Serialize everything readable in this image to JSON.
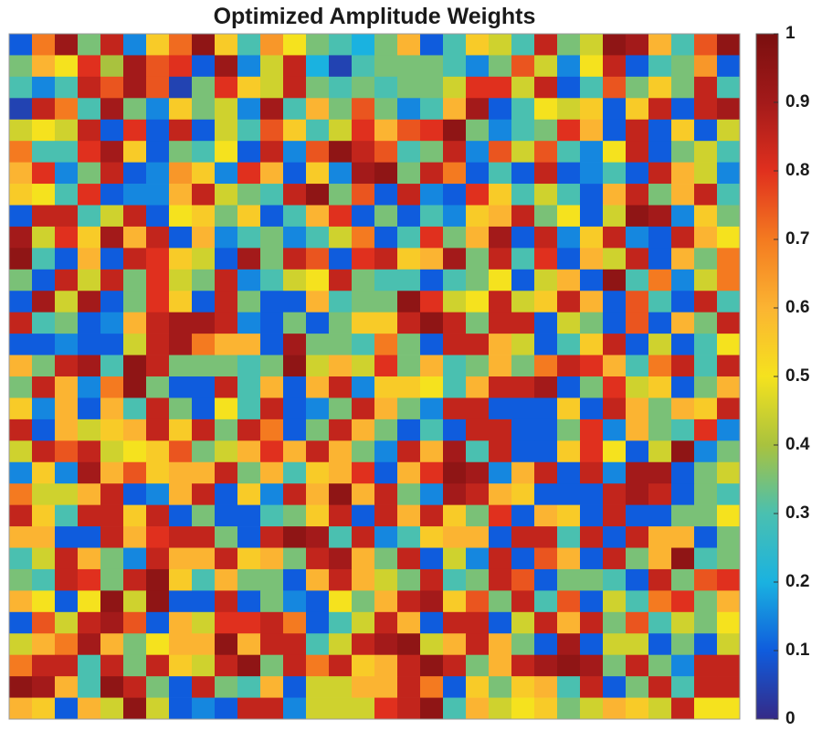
{
  "chart_data": {
    "type": "heatmap",
    "title": "Optimized Amplitude Weights",
    "xlabel": "",
    "ylabel": "",
    "rows": 32,
    "cols": 32,
    "colormap": "parula-like (dark blue to dark red)",
    "colorbar": {
      "range": [
        0,
        1
      ],
      "ticks": [
        0,
        0.1,
        0.2,
        0.3,
        0.4,
        0.5,
        0.6,
        0.7,
        0.8,
        0.9,
        1
      ],
      "tick_labels": [
        "0",
        "0.1",
        "0.2",
        "0.3",
        "0.4",
        "0.5",
        "0.6",
        "0.7",
        "0.8",
        "0.9",
        "1"
      ]
    },
    "colors": [
      "#352a87",
      "#0f5cdd",
      "#1ab2e0",
      "#4ac0b0",
      "#a9c23e",
      "#f5e21e",
      "#fbb432",
      "#f47a20",
      "#e0301e",
      "#a31a1a",
      "#7a0f0f"
    ],
    "values": [
      [
        0.1,
        0.7,
        0.92,
        0.35,
        0.85,
        0.15,
        0.55,
        0.72,
        0.95,
        0.55,
        0.3,
        0.65,
        0.5,
        0.35,
        0.3,
        0.2,
        0.35,
        0.6,
        0.1,
        0.3,
        0.55,
        0.45,
        0.3,
        0.85,
        0.35,
        0.45,
        0.95,
        0.9,
        0.6,
        0.3,
        0.75,
        0.95
      ],
      [
        0.35,
        0.6,
        0.5,
        0.8,
        0.4,
        0.9,
        0.75,
        0.8,
        0.1,
        0.92,
        0.15,
        0.45,
        0.85,
        0.2,
        0.05,
        0.3,
        0.35,
        0.35,
        0.35,
        0.3,
        0.15,
        0.35,
        0.75,
        0.45,
        0.15,
        0.5,
        0.85,
        0.1,
        0.3,
        0.35,
        0.65,
        0.1
      ],
      [
        0.3,
        0.15,
        0.3,
        0.85,
        0.75,
        0.9,
        0.75,
        0.05,
        0.35,
        0.8,
        0.55,
        0.45,
        0.85,
        0.35,
        0.3,
        0.35,
        0.3,
        0.35,
        0.35,
        0.45,
        0.8,
        0.8,
        0.45,
        0.85,
        0.1,
        0.3,
        0.75,
        0.35,
        0.55,
        0.35,
        0.85,
        0.3
      ],
      [
        0.05,
        0.85,
        0.7,
        0.3,
        0.9,
        0.35,
        0.15,
        0.55,
        0.35,
        0.45,
        0.15,
        0.9,
        0.3,
        0.6,
        0.35,
        0.75,
        0.35,
        0.15,
        0.3,
        0.6,
        0.9,
        0.1,
        0.3,
        0.5,
        0.45,
        0.55,
        0.1,
        0.55,
        0.85,
        0.1,
        0.85,
        0.9
      ],
      [
        0.45,
        0.5,
        0.45,
        0.85,
        0.1,
        0.8,
        0.1,
        0.85,
        0.1,
        0.45,
        0.3,
        0.75,
        0.55,
        0.3,
        0.45,
        0.8,
        0.6,
        0.75,
        0.8,
        0.95,
        0.35,
        0.15,
        0.3,
        0.35,
        0.8,
        0.6,
        0.1,
        0.85,
        0.1,
        0.55,
        0.1,
        0.45
      ],
      [
        0.7,
        0.3,
        0.3,
        0.8,
        0.9,
        0.55,
        0.1,
        0.35,
        0.3,
        0.5,
        0.1,
        0.85,
        0.15,
        0.75,
        0.95,
        0.85,
        0.75,
        0.3,
        0.35,
        0.85,
        0.15,
        0.75,
        0.45,
        0.75,
        0.3,
        0.15,
        0.5,
        0.85,
        0.1,
        0.35,
        0.45,
        0.3
      ],
      [
        0.6,
        0.8,
        0.15,
        0.35,
        0.85,
        0.1,
        0.15,
        0.65,
        0.55,
        0.15,
        0.8,
        0.6,
        0.1,
        0.55,
        0.15,
        0.9,
        0.95,
        0.35,
        0.85,
        0.7,
        0.1,
        0.3,
        0.1,
        0.85,
        0.1,
        0.15,
        0.3,
        0.1,
        0.85,
        0.6,
        0.45,
        0.15
      ],
      [
        0.55,
        0.5,
        0.3,
        0.8,
        0.1,
        0.15,
        0.15,
        0.6,
        0.85,
        0.45,
        0.35,
        0.3,
        0.85,
        0.95,
        0.35,
        0.75,
        0.1,
        0.85,
        0.15,
        0.1,
        0.8,
        0.55,
        0.3,
        0.45,
        0.3,
        0.1,
        0.6,
        0.85,
        0.35,
        0.6,
        0.85,
        0.3
      ],
      [
        0.1,
        0.85,
        0.85,
        0.3,
        0.45,
        0.85,
        0.1,
        0.5,
        0.55,
        0.35,
        0.55,
        0.1,
        0.3,
        0.6,
        0.8,
        0.1,
        0.35,
        0.1,
        0.3,
        0.15,
        0.55,
        0.6,
        0.85,
        0.35,
        0.5,
        0.1,
        0.45,
        0.95,
        0.9,
        0.15,
        0.55,
        0.35
      ],
      [
        0.9,
        0.45,
        0.8,
        0.55,
        0.9,
        0.6,
        0.85,
        0.1,
        0.6,
        0.15,
        0.3,
        0.35,
        0.15,
        0.3,
        0.45,
        0.7,
        0.1,
        0.3,
        0.8,
        0.35,
        0.6,
        0.9,
        0.1,
        0.85,
        0.15,
        0.55,
        0.85,
        0.15,
        0.1,
        0.85,
        0.6,
        0.5
      ],
      [
        0.95,
        0.3,
        0.1,
        0.6,
        0.1,
        0.85,
        0.8,
        0.55,
        0.45,
        0.1,
        0.9,
        0.35,
        0.85,
        0.75,
        0.1,
        0.8,
        0.85,
        0.55,
        0.6,
        0.9,
        0.35,
        0.85,
        0.3,
        0.8,
        0.1,
        0.6,
        0.45,
        0.85,
        0.1,
        0.6,
        0.35,
        0.7
      ],
      [
        0.35,
        0.1,
        0.85,
        0.45,
        0.85,
        0.35,
        0.8,
        0.45,
        0.35,
        0.85,
        0.15,
        0.3,
        0.45,
        0.5,
        0.85,
        0.35,
        0.3,
        0.3,
        0.1,
        0.3,
        0.35,
        0.5,
        0.1,
        0.45,
        0.6,
        0.1,
        0.95,
        0.3,
        0.7,
        0.15,
        0.45,
        0.7
      ],
      [
        0.1,
        0.9,
        0.45,
        0.9,
        0.1,
        0.35,
        0.8,
        0.55,
        0.1,
        0.85,
        0.35,
        0.1,
        0.1,
        0.6,
        0.3,
        0.35,
        0.35,
        0.95,
        0.8,
        0.45,
        0.5,
        0.85,
        0.45,
        0.55,
        0.85,
        0.6,
        0.1,
        0.75,
        0.3,
        0.1,
        0.85,
        0.3
      ],
      [
        0.85,
        0.3,
        0.35,
        0.1,
        0.15,
        0.6,
        0.85,
        0.9,
        0.9,
        0.85,
        0.15,
        0.1,
        0.35,
        0.1,
        0.35,
        0.55,
        0.55,
        0.85,
        0.95,
        0.85,
        0.35,
        0.85,
        0.85,
        0.1,
        0.45,
        0.35,
        0.1,
        0.75,
        0.1,
        0.6,
        0.35,
        0.85
      ],
      [
        0.1,
        0.1,
        0.15,
        0.1,
        0.1,
        0.45,
        0.85,
        0.9,
        0.7,
        0.6,
        0.6,
        0.1,
        0.9,
        0.35,
        0.35,
        0.3,
        0.7,
        0.35,
        0.1,
        0.85,
        0.85,
        0.6,
        0.45,
        0.1,
        0.3,
        0.55,
        0.85,
        0.1,
        0.45,
        0.1,
        0.3,
        0.5
      ],
      [
        0.6,
        0.35,
        0.85,
        0.9,
        0.3,
        0.95,
        0.85,
        0.35,
        0.35,
        0.35,
        0.3,
        0.35,
        0.95,
        0.45,
        0.6,
        0.45,
        0.8,
        0.35,
        0.6,
        0.3,
        0.35,
        0.6,
        0.35,
        0.7,
        0.85,
        0.8,
        0.6,
        0.3,
        0.7,
        0.85,
        0.3,
        0.85
      ],
      [
        0.35,
        0.85,
        0.6,
        0.15,
        0.7,
        0.95,
        0.35,
        0.1,
        0.1,
        0.85,
        0.3,
        0.6,
        0.1,
        0.6,
        0.85,
        0.15,
        0.55,
        0.55,
        0.5,
        0.3,
        0.6,
        0.85,
        0.85,
        0.9,
        0.1,
        0.35,
        0.8,
        0.45,
        0.55,
        0.1,
        0.35,
        0.6
      ],
      [
        0.55,
        0.15,
        0.6,
        0.1,
        0.6,
        0.3,
        0.85,
        0.35,
        0.1,
        0.5,
        0.3,
        0.85,
        0.1,
        0.15,
        0.35,
        0.85,
        0.6,
        0.35,
        0.15,
        0.85,
        0.85,
        0.1,
        0.1,
        0.1,
        0.55,
        0.1,
        0.85,
        0.6,
        0.35,
        0.6,
        0.55,
        0.85
      ],
      [
        0.85,
        0.1,
        0.6,
        0.45,
        0.55,
        0.6,
        0.85,
        0.55,
        0.85,
        0.35,
        0.85,
        0.7,
        0.1,
        0.35,
        0.85,
        0.6,
        0.35,
        0.1,
        0.3,
        0.1,
        0.85,
        0.85,
        0.1,
        0.1,
        0.35,
        0.8,
        0.15,
        0.6,
        0.35,
        0.3,
        0.8,
        0.15
      ],
      [
        0.45,
        0.85,
        0.75,
        0.85,
        0.45,
        0.5,
        0.55,
        0.75,
        0.35,
        0.45,
        0.6,
        0.8,
        0.6,
        0.85,
        0.6,
        0.35,
        0.15,
        0.85,
        0.6,
        0.9,
        0.3,
        0.85,
        0.1,
        0.1,
        0.55,
        0.8,
        0.5,
        0.1,
        0.45,
        0.95,
        0.15,
        0.35
      ],
      [
        0.15,
        0.55,
        0.15,
        0.9,
        0.6,
        0.75,
        0.55,
        0.6,
        0.6,
        0.85,
        0.35,
        0.6,
        0.3,
        0.55,
        0.6,
        0.8,
        0.1,
        0.6,
        0.8,
        0.95,
        0.9,
        0.15,
        0.6,
        0.85,
        0.1,
        0.85,
        0.15,
        0.9,
        0.9,
        0.1,
        0.35,
        0.45
      ],
      [
        0.7,
        0.45,
        0.45,
        0.6,
        0.85,
        0.1,
        0.15,
        0.6,
        0.85,
        0.1,
        0.55,
        0.15,
        0.85,
        0.6,
        0.95,
        0.6,
        0.85,
        0.35,
        0.15,
        0.9,
        0.85,
        0.6,
        0.55,
        0.1,
        0.1,
        0.1,
        0.85,
        0.9,
        0.85,
        0.1,
        0.35,
        0.3
      ],
      [
        0.85,
        0.55,
        0.3,
        0.85,
        0.85,
        0.55,
        0.85,
        0.1,
        0.35,
        0.1,
        0.1,
        0.3,
        0.35,
        0.55,
        0.85,
        0.1,
        0.85,
        0.6,
        0.85,
        0.55,
        0.35,
        0.8,
        0.1,
        0.6,
        0.55,
        0.1,
        0.85,
        0.1,
        0.1,
        0.35,
        0.35,
        0.5
      ],
      [
        0.6,
        0.6,
        0.1,
        0.1,
        0.85,
        0.6,
        0.8,
        0.85,
        0.85,
        0.35,
        0.1,
        0.85,
        0.95,
        0.9,
        0.3,
        0.85,
        0.15,
        0.3,
        0.55,
        0.6,
        0.6,
        0.1,
        0.85,
        0.85,
        0.3,
        0.85,
        0.1,
        0.85,
        0.6,
        0.6,
        0.1,
        0.35
      ],
      [
        0.3,
        0.45,
        0.85,
        0.6,
        0.35,
        0.15,
        0.85,
        0.6,
        0.6,
        0.85,
        0.55,
        0.6,
        0.35,
        0.85,
        0.9,
        0.6,
        0.35,
        0.85,
        0.1,
        0.45,
        0.15,
        0.85,
        0.1,
        0.75,
        0.6,
        0.1,
        0.85,
        0.35,
        0.6,
        0.95,
        0.3,
        0.35
      ],
      [
        0.35,
        0.3,
        0.85,
        0.8,
        0.35,
        0.85,
        0.95,
        0.55,
        0.3,
        0.6,
        0.35,
        0.35,
        0.1,
        0.6,
        0.85,
        0.6,
        0.45,
        0.35,
        0.85,
        0.3,
        0.35,
        0.85,
        0.75,
        0.1,
        0.35,
        0.35,
        0.3,
        0.1,
        0.85,
        0.35,
        0.75,
        0.8
      ],
      [
        0.6,
        0.5,
        0.1,
        0.5,
        0.95,
        0.45,
        0.95,
        0.1,
        0.1,
        0.85,
        0.1,
        0.35,
        0.15,
        0.1,
        0.5,
        0.35,
        0.6,
        0.85,
        0.9,
        0.55,
        0.75,
        0.35,
        0.85,
        0.3,
        0.75,
        0.1,
        0.45,
        0.3,
        0.7,
        0.8,
        0.35,
        0.6
      ],
      [
        0.1,
        0.75,
        0.45,
        0.85,
        0.9,
        0.75,
        0.1,
        0.6,
        0.45,
        0.8,
        0.8,
        0.85,
        0.7,
        0.1,
        0.3,
        0.45,
        0.85,
        0.6,
        0.1,
        0.85,
        0.85,
        0.1,
        0.45,
        0.85,
        0.6,
        0.85,
        0.35,
        0.75,
        0.3,
        0.45,
        0.35,
        0.5
      ],
      [
        0.45,
        0.6,
        0.7,
        0.9,
        0.6,
        0.35,
        0.5,
        0.6,
        0.6,
        0.95,
        0.6,
        0.85,
        0.85,
        0.3,
        0.45,
        0.85,
        0.9,
        0.95,
        0.45,
        0.6,
        0.85,
        0.6,
        0.35,
        0.1,
        0.9,
        0.1,
        0.45,
        0.45,
        0.1,
        0.35,
        0.1,
        0.45
      ],
      [
        0.7,
        0.85,
        0.85,
        0.3,
        0.85,
        0.35,
        0.85,
        0.55,
        0.45,
        0.85,
        0.95,
        0.35,
        0.85,
        0.7,
        0.85,
        0.55,
        0.6,
        0.85,
        0.95,
        0.85,
        0.35,
        0.6,
        0.85,
        0.9,
        0.95,
        0.9,
        0.35,
        0.85,
        0.35,
        0.15,
        0.85,
        0.85
      ],
      [
        0.95,
        0.9,
        0.6,
        0.3,
        0.95,
        0.85,
        0.35,
        0.1,
        0.85,
        0.35,
        0.3,
        0.6,
        0.1,
        0.45,
        0.45,
        0.6,
        0.6,
        0.85,
        0.7,
        0.1,
        0.55,
        0.35,
        0.55,
        0.6,
        0.3,
        0.85,
        0.1,
        0.35,
        0.85,
        0.3,
        0.85,
        0.85
      ],
      [
        0.6,
        0.55,
        0.1,
        0.6,
        0.45,
        0.95,
        0.45,
        0.1,
        0.15,
        0.1,
        0.85,
        0.85,
        0.15,
        0.45,
        0.45,
        0.45,
        0.8,
        0.85,
        0.95,
        0.3,
        0.6,
        0.45,
        0.5,
        0.55,
        0.35,
        0.45,
        0.6,
        0.55,
        0.45,
        0.85,
        0.5,
        0.5
      ]
    ]
  }
}
